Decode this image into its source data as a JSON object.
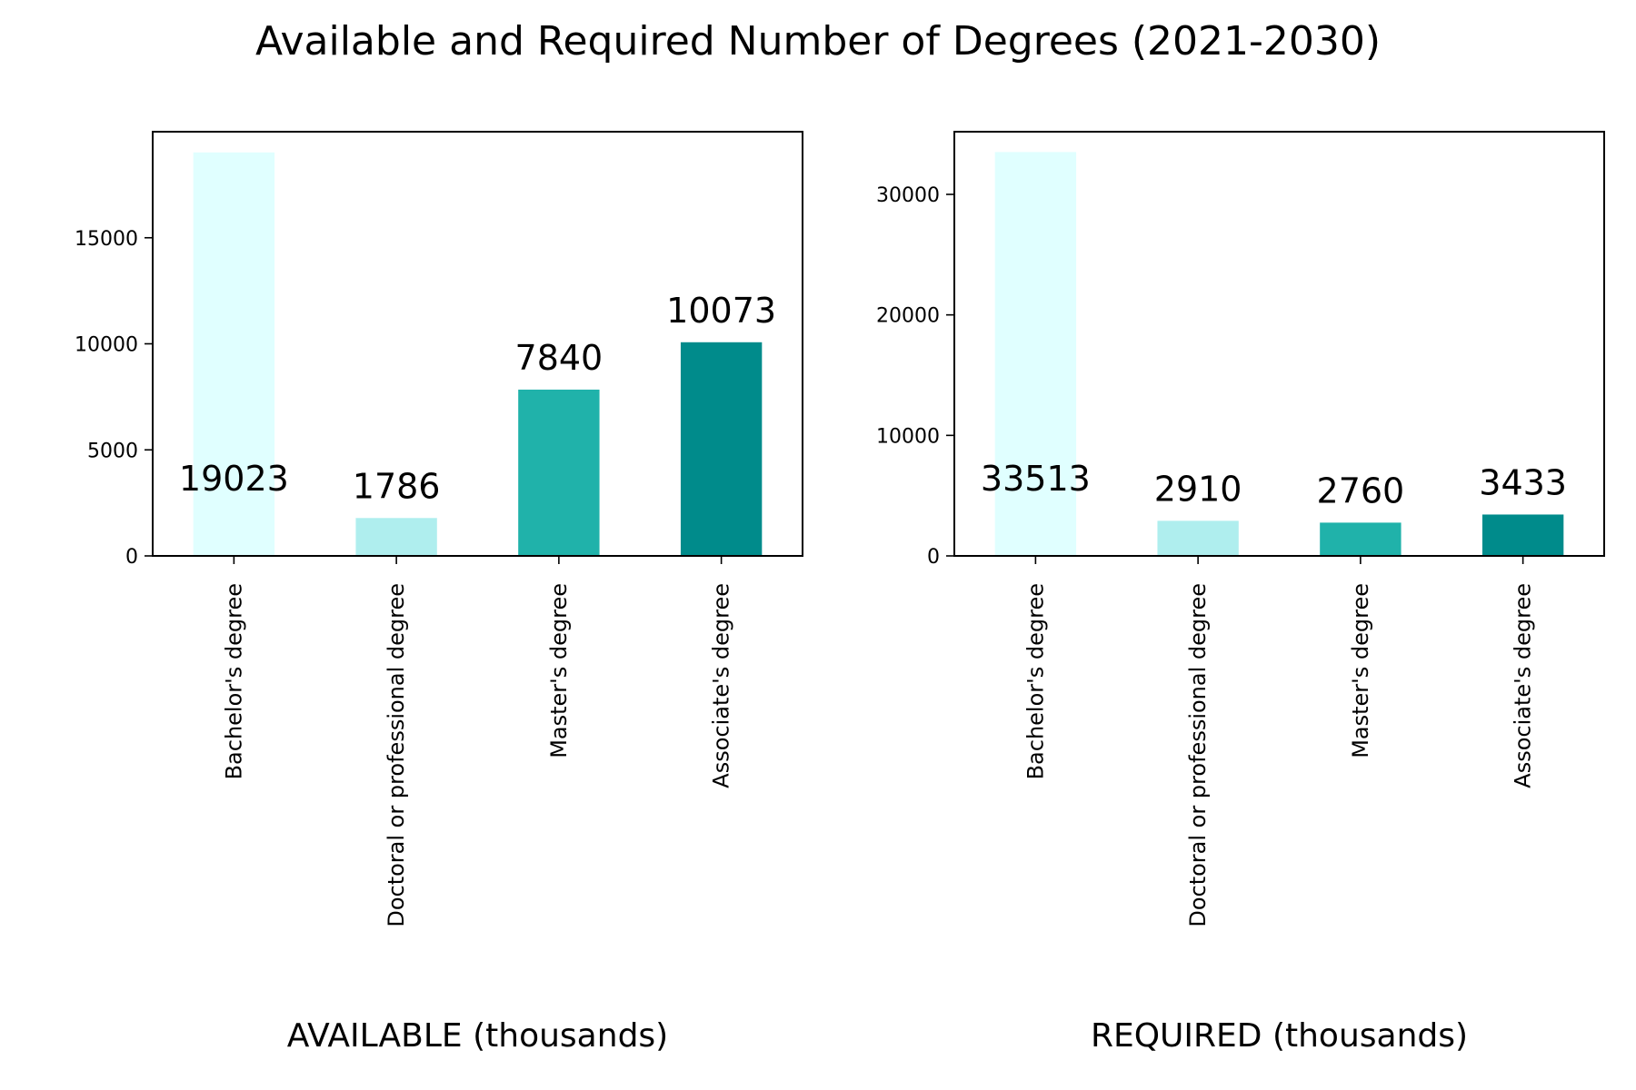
{
  "figure": {
    "title": "Available and Required Number of Degrees (2021-2030)"
  },
  "chart_data": [
    {
      "type": "bar",
      "xlabel": "AVAILABLE (thousands)",
      "ylabel": "",
      "categories": [
        "Bachelor's degree",
        "Doctoral or professional degree",
        "Master's degree",
        "Associate's degree"
      ],
      "values": [
        19023,
        1786,
        7840,
        10073
      ],
      "data_labels": [
        "19023",
        "1786",
        "7840",
        "10073"
      ],
      "colors": [
        "#e0ffff",
        "#afeeee",
        "#20b2aa",
        "#008b8b"
      ],
      "ylim": [
        0,
        20000
      ],
      "yticks": [
        0,
        5000,
        10000,
        15000
      ],
      "ytick_labels": [
        "0",
        "5000",
        "10000",
        "15000"
      ],
      "grid": false,
      "legend": "none"
    },
    {
      "type": "bar",
      "xlabel": "REQUIRED (thousands)",
      "ylabel": "",
      "categories": [
        "Bachelor's degree",
        "Doctoral or professional degree",
        "Master's degree",
        "Associate's degree"
      ],
      "values": [
        33513,
        2910,
        2760,
        3433
      ],
      "data_labels": [
        "33513",
        "2910",
        "2760",
        "3433"
      ],
      "colors": [
        "#e0ffff",
        "#afeeee",
        "#20b2aa",
        "#008b8b"
      ],
      "ylim": [
        0,
        35200
      ],
      "yticks": [
        0,
        10000,
        20000,
        30000
      ],
      "ytick_labels": [
        "0",
        "10000",
        "20000",
        "30000"
      ],
      "grid": false,
      "legend": "none"
    }
  ]
}
